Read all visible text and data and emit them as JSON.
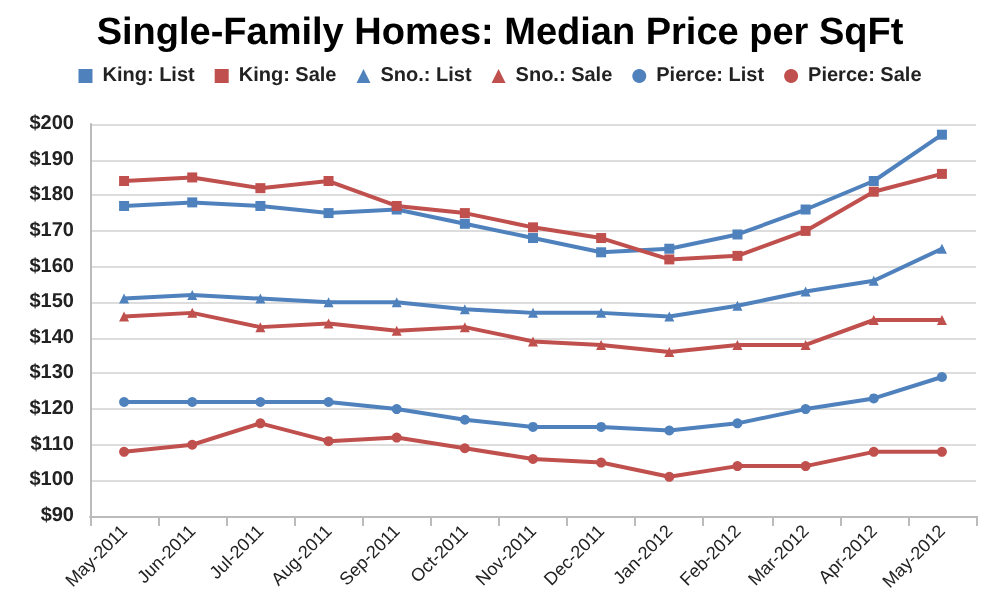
{
  "chart_data": {
    "type": "line",
    "title": "Single-Family Homes: Median Price per SqFt",
    "categories": [
      "May-2011",
      "Jun-2011",
      "Jul-2011",
      "Aug-2011",
      "Sep-2011",
      "Oct-2011",
      "Nov-2011",
      "Dec-2011",
      "Jan-2012",
      "Feb-2012",
      "Mar-2012",
      "Apr-2012",
      "May-2012"
    ],
    "series": [
      {
        "name": "King: List",
        "color": "#4f81bd",
        "marker": "square",
        "values": [
          177,
          178,
          177,
          175,
          176,
          172,
          168,
          164,
          165,
          169,
          176,
          184,
          197
        ]
      },
      {
        "name": "King: Sale",
        "color": "#c0504d",
        "marker": "square",
        "values": [
          184,
          185,
          182,
          184,
          177,
          175,
          171,
          168,
          162,
          163,
          170,
          181,
          186
        ]
      },
      {
        "name": "Sno.: List",
        "color": "#4f81bd",
        "marker": "triangle",
        "values": [
          151,
          152,
          151,
          150,
          150,
          148,
          147,
          147,
          146,
          149,
          153,
          156,
          165
        ]
      },
      {
        "name": "Sno.: Sale",
        "color": "#c0504d",
        "marker": "triangle",
        "values": [
          146,
          147,
          143,
          144,
          142,
          143,
          139,
          138,
          136,
          138,
          138,
          145,
          145
        ]
      },
      {
        "name": "Pierce: List",
        "color": "#4f81bd",
        "marker": "circle",
        "values": [
          122,
          122,
          122,
          122,
          120,
          117,
          115,
          115,
          114,
          116,
          120,
          123,
          129
        ]
      },
      {
        "name": "Pierce: Sale",
        "color": "#c0504d",
        "marker": "circle",
        "values": [
          108,
          110,
          116,
          111,
          112,
          109,
          106,
          105,
          101,
          104,
          104,
          108,
          108
        ]
      }
    ],
    "ylim": [
      90,
      200
    ],
    "yticks": [
      {
        "value": 90,
        "label": "$90"
      },
      {
        "value": 100,
        "label": "$100"
      },
      {
        "value": 110,
        "label": "$110"
      },
      {
        "value": 120,
        "label": "$120"
      },
      {
        "value": 130,
        "label": "$130"
      },
      {
        "value": 140,
        "label": "$140"
      },
      {
        "value": 150,
        "label": "$150"
      },
      {
        "value": 160,
        "label": "$160"
      },
      {
        "value": 170,
        "label": "$170"
      },
      {
        "value": 180,
        "label": "$180"
      },
      {
        "value": 190,
        "label": "$190"
      },
      {
        "value": 200,
        "label": "$200"
      }
    ],
    "grid": "y",
    "legend": "top",
    "line_style": "solid"
  }
}
